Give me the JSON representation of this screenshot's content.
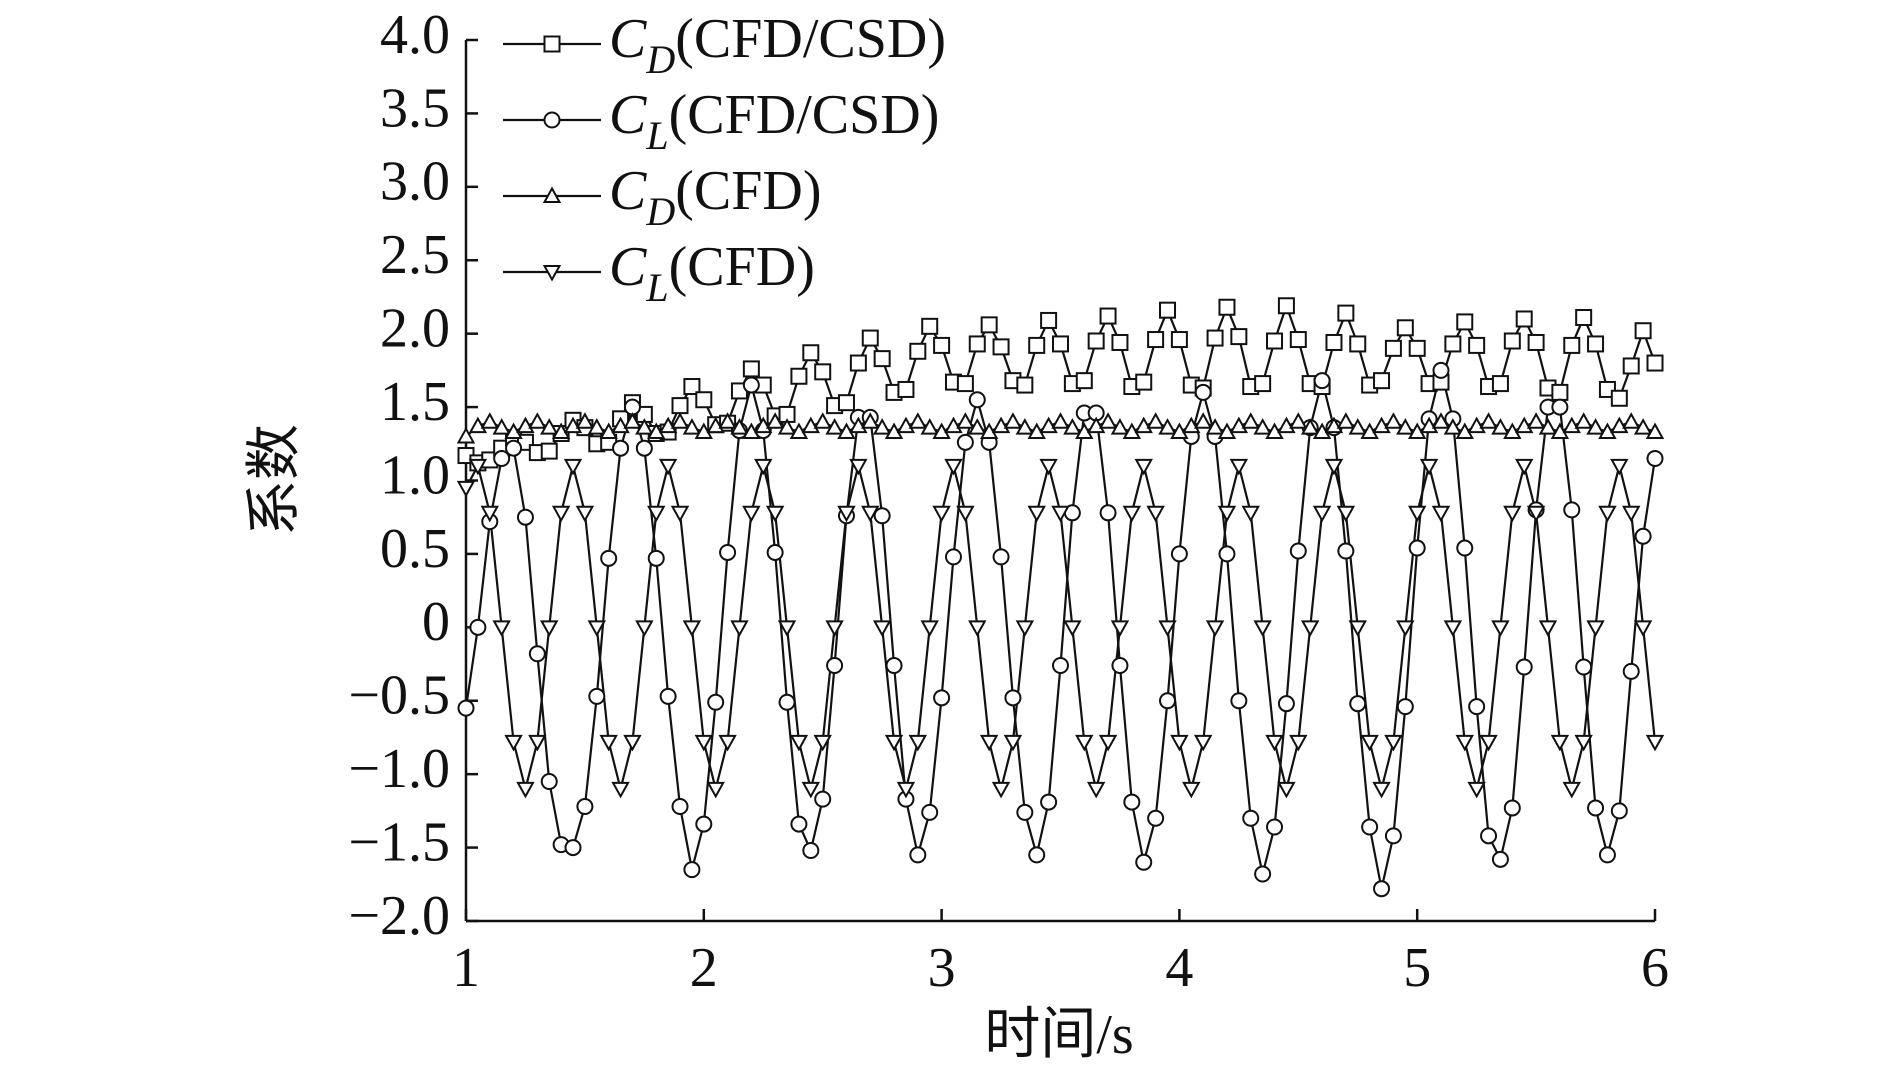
{
  "chart_data": {
    "type": "line",
    "x_label": "时间/s",
    "y_label": "系数",
    "x": [
      1,
      1.05,
      1.1,
      1.15,
      1.2,
      1.25,
      1.3,
      1.35,
      1.4,
      1.45,
      1.5,
      1.55,
      1.6,
      1.65,
      1.7,
      1.75,
      1.8,
      1.85,
      1.9,
      1.95,
      2,
      2.05,
      2.1,
      2.15,
      2.2,
      2.25,
      2.3,
      2.35,
      2.4,
      2.45,
      2.5,
      2.55,
      2.6,
      2.65,
      2.7,
      2.75,
      2.8,
      2.85,
      2.9,
      2.95,
      3,
      3.05,
      3.1,
      3.15,
      3.2,
      3.25,
      3.3,
      3.35,
      3.4,
      3.45,
      3.5,
      3.55,
      3.6,
      3.65,
      3.7,
      3.75,
      3.8,
      3.85,
      3.9,
      3.95,
      4,
      4.05,
      4.1,
      4.15,
      4.2,
      4.25,
      4.3,
      4.35,
      4.4,
      4.45,
      4.5,
      4.55,
      4.6,
      4.65,
      4.7,
      4.75,
      4.8,
      4.85,
      4.9,
      4.95,
      5,
      5.05,
      5.1,
      5.15,
      5.2,
      5.25,
      5.3,
      5.35,
      5.4,
      5.45,
      5.5,
      5.55,
      5.6,
      5.65,
      5.7,
      5.75,
      5.8,
      5.85,
      5.9,
      5.95,
      6
    ],
    "series": [
      {
        "name": "CD(CFD/CSD)",
        "color": "#111111",
        "marker": "square",
        "values": [
          1.17,
          1.12,
          1.14,
          1.22,
          1.29,
          1.26,
          1.19,
          1.2,
          1.32,
          1.41,
          1.36,
          1.25,
          1.26,
          1.42,
          1.53,
          1.45,
          1.32,
          1.33,
          1.51,
          1.64,
          1.55,
          1.38,
          1.39,
          1.61,
          1.76,
          1.65,
          1.44,
          1.45,
          1.71,
          1.87,
          1.74,
          1.51,
          1.53,
          1.8,
          1.97,
          1.83,
          1.6,
          1.62,
          1.88,
          2.05,
          1.92,
          1.67,
          1.66,
          1.93,
          2.06,
          1.91,
          1.68,
          1.65,
          1.92,
          2.09,
          1.93,
          1.66,
          1.68,
          1.95,
          2.12,
          1.94,
          1.64,
          1.67,
          1.96,
          2.16,
          1.96,
          1.65,
          1.63,
          1.97,
          2.18,
          1.98,
          1.64,
          1.66,
          1.95,
          2.19,
          1.96,
          1.66,
          1.64,
          1.94,
          2.14,
          1.93,
          1.65,
          1.68,
          1.9,
          2.04,
          1.9,
          1.66,
          1.67,
          1.93,
          2.08,
          1.92,
          1.64,
          1.66,
          1.95,
          2.1,
          1.94,
          1.63,
          1.6,
          1.92,
          2.11,
          1.93,
          1.62,
          1.56,
          1.78,
          2.02,
          1.8
        ]
      },
      {
        "name": "CL(CFD/CSD)",
        "color": "#111111",
        "marker": "circle",
        "values": [
          -0.55,
          0.0,
          0.72,
          1.15,
          1.22,
          0.75,
          -0.18,
          -1.05,
          -1.48,
          -1.5,
          -1.22,
          -0.47,
          0.47,
          1.22,
          1.5,
          1.22,
          0.47,
          -0.47,
          -1.22,
          -1.65,
          -1.34,
          -0.51,
          0.51,
          1.34,
          1.65,
          1.34,
          0.51,
          -0.51,
          -1.34,
          -1.52,
          -1.17,
          -0.26,
          0.76,
          1.43,
          1.43,
          0.76,
          -0.26,
          -1.17,
          -1.55,
          -1.26,
          -0.48,
          0.48,
          1.26,
          1.55,
          1.26,
          0.48,
          -0.48,
          -1.26,
          -1.55,
          -1.19,
          -0.26,
          0.78,
          1.46,
          1.46,
          0.78,
          -0.26,
          -1.19,
          -1.6,
          -1.3,
          -0.5,
          0.5,
          1.3,
          1.6,
          1.3,
          0.5,
          -0.5,
          -1.3,
          -1.68,
          -1.36,
          -0.52,
          0.52,
          1.36,
          1.68,
          1.36,
          0.52,
          -0.52,
          -1.36,
          -1.78,
          -1.42,
          -0.54,
          0.54,
          1.42,
          1.75,
          1.42,
          0.54,
          -0.54,
          -1.42,
          -1.58,
          -1.23,
          -0.27,
          0.8,
          1.5,
          1.5,
          0.8,
          -0.27,
          -1.23,
          -1.55,
          -1.25,
          -0.3,
          0.62,
          1.15
        ]
      },
      {
        "name": "CD(CFD)",
        "color": "#111111",
        "marker": "triangle-up",
        "values": [
          1.3,
          1.37,
          1.4,
          1.36,
          1.33,
          1.37,
          1.4,
          1.36,
          1.33,
          1.37,
          1.4,
          1.36,
          1.33,
          1.37,
          1.4,
          1.36,
          1.33,
          1.37,
          1.4,
          1.36,
          1.33,
          1.37,
          1.4,
          1.36,
          1.33,
          1.37,
          1.4,
          1.36,
          1.33,
          1.37,
          1.4,
          1.36,
          1.33,
          1.37,
          1.4,
          1.36,
          1.33,
          1.37,
          1.4,
          1.36,
          1.33,
          1.37,
          1.4,
          1.36,
          1.33,
          1.37,
          1.4,
          1.36,
          1.33,
          1.37,
          1.4,
          1.36,
          1.33,
          1.37,
          1.4,
          1.36,
          1.33,
          1.37,
          1.4,
          1.36,
          1.33,
          1.37,
          1.4,
          1.36,
          1.33,
          1.37,
          1.4,
          1.36,
          1.33,
          1.37,
          1.4,
          1.36,
          1.33,
          1.37,
          1.4,
          1.36,
          1.33,
          1.37,
          1.4,
          1.36,
          1.33,
          1.37,
          1.4,
          1.36,
          1.33,
          1.37,
          1.4,
          1.36,
          1.33,
          1.37,
          1.4,
          1.36,
          1.33,
          1.37,
          1.4,
          1.36,
          1.33,
          1.37,
          1.4,
          1.36,
          1.33
        ]
      },
      {
        "name": "CL(CFD)",
        "color": "#111111",
        "marker": "triangle-down",
        "values": [
          0.95,
          1.1,
          0.78,
          0,
          -0.78,
          -1.1,
          -0.78,
          0,
          0.78,
          1.1,
          0.78,
          0,
          -0.78,
          -1.1,
          -0.78,
          0,
          0.78,
          1.1,
          0.78,
          0,
          -0.78,
          -1.1,
          -0.78,
          0,
          0.78,
          1.1,
          0.78,
          0,
          -0.78,
          -1.1,
          -0.78,
          0,
          0.78,
          1.1,
          0.78,
          0,
          -0.78,
          -1.1,
          -0.78,
          0,
          0.78,
          1.1,
          0.78,
          0,
          -0.78,
          -1.1,
          -0.78,
          0,
          0.78,
          1.1,
          0.78,
          0,
          -0.78,
          -1.1,
          -0.78,
          0,
          0.78,
          1.1,
          0.78,
          0,
          -0.78,
          -1.1,
          -0.78,
          0,
          0.78,
          1.1,
          0.78,
          0,
          -0.78,
          -1.1,
          -0.78,
          0,
          0.78,
          1.1,
          0.78,
          0,
          -0.78,
          -1.1,
          -0.78,
          0,
          0.78,
          1.1,
          0.78,
          0,
          -0.78,
          -1.1,
          -0.78,
          0,
          0.78,
          1.1,
          0.78,
          0,
          -0.78,
          -1.1,
          -0.78,
          0,
          0.78,
          1.1,
          0.78,
          0,
          -0.78
        ]
      }
    ],
    "xlim": [
      1,
      6
    ],
    "xticks": [
      1,
      2,
      3,
      4,
      5,
      6
    ],
    "ylim": [
      -2,
      4
    ],
    "yticks": [
      {
        "value": -2,
        "label": "−2.0"
      },
      {
        "value": -1.5,
        "label": "−1.5"
      },
      {
        "value": -1,
        "label": "−1.0"
      },
      {
        "value": -0.5,
        "label": "−0.5"
      },
      0,
      {
        "value": 0.5,
        "label": "0.5"
      },
      {
        "value": 1,
        "label": "1.0"
      },
      {
        "value": 1.5,
        "label": "1.5"
      },
      {
        "value": 2,
        "label": "2.0"
      },
      {
        "value": 2.5,
        "label": "2.5"
      },
      {
        "value": 3,
        "label": "3.0"
      },
      {
        "value": 3.5,
        "label": "3.5"
      },
      {
        "value": 4,
        "label": "4.0"
      }
    ],
    "grid": false,
    "legend": "top-left"
  }
}
